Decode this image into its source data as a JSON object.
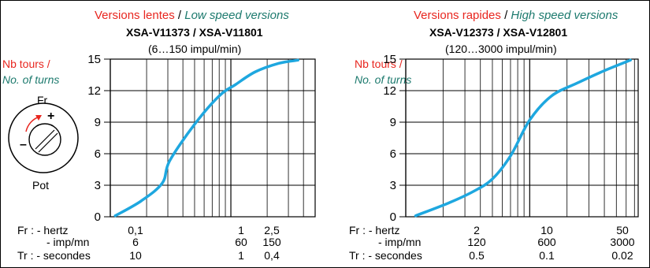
{
  "colors": {
    "red": "#e8261f",
    "green": "#1d7a6e",
    "curve": "#1ea7df"
  },
  "knob": {
    "top_label": "Fr",
    "bottom_label": "Pot",
    "plus": "+",
    "minus": "–"
  },
  "chart_data": [
    {
      "type": "line",
      "title_red": "Versions lentes",
      "title_sep": "/",
      "title_green": "Low speed versions",
      "model": "XSA-V11373 / XSA-V11801",
      "range": "(6…150 impul/min)",
      "ylabel_red": "Nb tours /",
      "ylabel_green": "No. of turns",
      "x_scale": "log",
      "xlim_hz": [
        0.1,
        5
      ],
      "ylim": [
        0,
        15
      ],
      "yticks": [
        0,
        3,
        6,
        9,
        12,
        15
      ],
      "grid": true,
      "x_hz": [
        0.11,
        0.18,
        0.27,
        0.31,
        0.5,
        0.8,
        1.1,
        1.6,
        2.5,
        3.6
      ],
      "y_turns": [
        0.1,
        1.5,
        3.2,
        5.3,
        8.8,
        11.5,
        12.6,
        13.8,
        14.6,
        14.9
      ],
      "xaxis_rows": [
        {
          "label": "Fr : - hertz",
          "ticks": [
            "0,1",
            "1",
            "2,5"
          ]
        },
        {
          "label": "- imp/mn",
          "ticks": [
            "6",
            "60",
            "150"
          ]
        },
        {
          "label": "Tr : - secondes",
          "ticks": [
            "10",
            "1",
            "0,4"
          ]
        }
      ]
    },
    {
      "type": "line",
      "title_red": "Versions rapides",
      "title_sep": "/",
      "title_green": "High speed versions",
      "model": "XSA-V12373 / XSA-V12801",
      "range": "(120…3000 impul/min)",
      "ylabel_red": "Nb tours /",
      "ylabel_green": "No. of turns",
      "x_scale": "log",
      "xlim_hz": [
        1,
        75
      ],
      "ylim": [
        0,
        15
      ],
      "yticks": [
        0,
        3,
        6,
        9,
        12,
        15
      ],
      "grid": true,
      "x_hz": [
        1.2,
        2.2,
        3.5,
        5,
        7,
        10,
        15,
        25,
        40,
        65
      ],
      "y_turns": [
        0.1,
        1.3,
        2.4,
        3.6,
        5.8,
        9.2,
        11.5,
        12.8,
        13.9,
        14.9
      ],
      "xaxis_rows": [
        {
          "label": "Fr : - hertz",
          "ticks": [
            "2",
            "10",
            "50"
          ]
        },
        {
          "label": "- imp/mn",
          "ticks": [
            "120",
            "600",
            "3000"
          ]
        },
        {
          "label": "Tr : - secondes",
          "ticks": [
            "0.5",
            "0.1",
            "0.02"
          ]
        }
      ]
    }
  ]
}
